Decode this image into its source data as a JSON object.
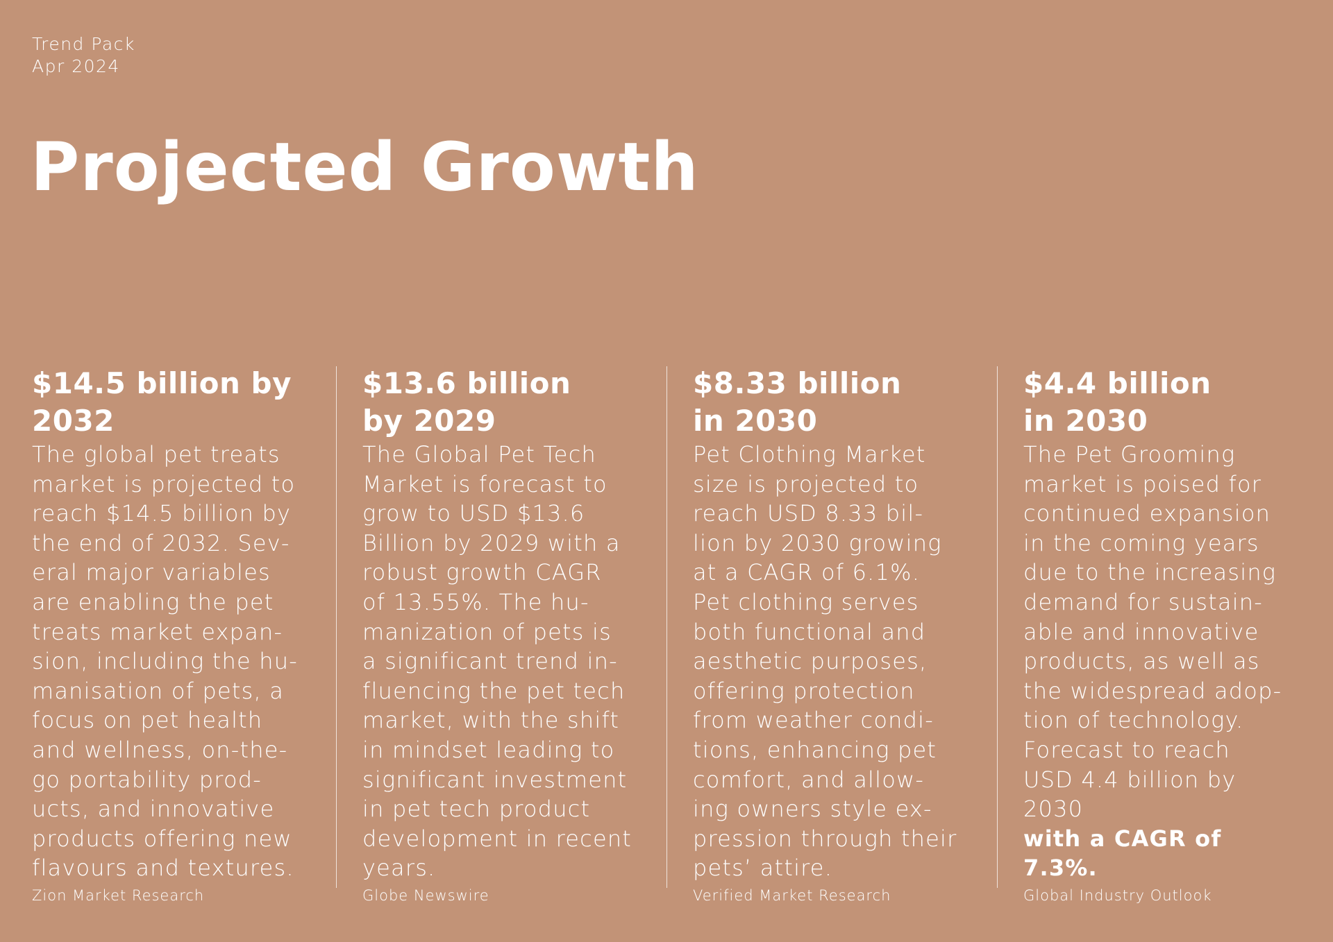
{
  "header": {
    "line1": "Trend Pack",
    "line2": "Apr 2024"
  },
  "title": "Projected Growth",
  "columns": [
    {
      "stat": [
        "$14.5 billion by",
        "2032"
      ],
      "body": [
        "The global pet treats",
        "market is projected to",
        "reach $14.5 billion by",
        "the end of 2032. Sev-",
        "eral major variables",
        "are enabling the pet",
        "treats market expan-",
        "sion, including the hu-",
        "manisation of pets, a",
        "focus on pet health",
        "and wellness, on-the-",
        "go portability prod-",
        "ucts, and innovative",
        "products offering new",
        "flavours and textures."
      ],
      "source": "Zion Market Research"
    },
    {
      "stat": [
        "$13.6 billion",
        "by 2029"
      ],
      "body": [
        "The Global Pet Tech",
        "Market is forecast to",
        "grow to USD $13.6",
        "Billion by 2029 with a",
        "robust growth CAGR",
        "of 13.55%. The hu-",
        "manization of pets is",
        "a significant trend in-",
        "fluencing the pet tech",
        "market, with the shift",
        "in mindset leading to",
        "significant investment",
        "in pet tech product",
        "development in recent",
        "years."
      ],
      "source": "Globe Newswire"
    },
    {
      "stat": [
        "$8.33 billion",
        "in 2030"
      ],
      "body": [
        "Pet Clothing Market",
        "size is projected to",
        "reach USD 8.33 bil-",
        "lion by 2030 growing",
        "at a CAGR of 6.1%.",
        "Pet clothing serves",
        "both functional and",
        "aesthetic purposes,",
        "offering protection",
        "from weather condi-",
        "tions, enhancing pet",
        "comfort, and allow-",
        "ing owners style ex-",
        "pression through their",
        "pets’ attire."
      ],
      "source": "Verified Market Research"
    },
    {
      "stat": [
        "$4.4 billion",
        "in 2030"
      ],
      "body": [
        "The Pet Grooming",
        "market is poised for",
        "continued expansion",
        "in the coming years",
        "due to the increasing",
        "demand for sustain-",
        "able and innovative",
        "products, as well as",
        "the widespread adop-",
        "tion of technology.",
        "Forecast to reach",
        "USD 4.4 billion by"
      ],
      "body_last_regular": "2030 ",
      "body_last_bold": "with a CAGR of",
      "body_final_bold": "7.3%.",
      "source": "Global Industry Outlook"
    }
  ],
  "colors": {
    "background": "#c29377",
    "text": "#ffffff"
  }
}
